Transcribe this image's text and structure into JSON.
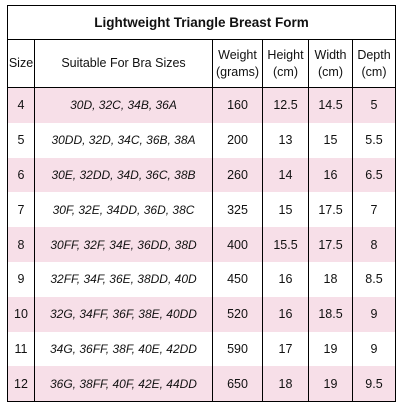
{
  "table": {
    "title": "Lightweight Triangle Breast Form",
    "headers": {
      "size": "Size",
      "bras": "Suitable For Bra Sizes",
      "weight_line1": "Weight",
      "weight_line2": "(grams)",
      "height_line1": "Height",
      "height_line2": "(cm)",
      "width_line1": "Width",
      "width_line2": "(cm)",
      "depth_line1": "Depth",
      "depth_line2": "(cm)"
    },
    "row_colors": {
      "pink": "#f7dfe8",
      "white": "#ffffff"
    },
    "rows": [
      {
        "size": "4",
        "bras": "30D, 32C, 34B, 36A",
        "weight": "160",
        "height": "12.5",
        "width": "14.5",
        "depth": "5"
      },
      {
        "size": "5",
        "bras": "30DD, 32D, 34C, 36B, 38A",
        "weight": "200",
        "height": "13",
        "width": "15",
        "depth": "5.5"
      },
      {
        "size": "6",
        "bras": "30E, 32DD, 34D, 36C, 38B",
        "weight": "260",
        "height": "14",
        "width": "16",
        "depth": "6.5"
      },
      {
        "size": "7",
        "bras": "30F, 32E, 34DD, 36D, 38C",
        "weight": "325",
        "height": "15",
        "width": "17.5",
        "depth": "7"
      },
      {
        "size": "8",
        "bras": "30FF, 32F, 34E, 36DD, 38D",
        "weight": "400",
        "height": "15.5",
        "width": "17.5",
        "depth": "8"
      },
      {
        "size": "9",
        "bras": "32FF, 34F, 36E, 38DD, 40D",
        "weight": "450",
        "height": "16",
        "width": "18",
        "depth": "8.5"
      },
      {
        "size": "10",
        "bras": "32G, 34FF, 36F, 38E, 40DD",
        "weight": "520",
        "height": "16",
        "width": "18.5",
        "depth": "9"
      },
      {
        "size": "11",
        "bras": "34G, 36FF, 38F, 40E, 42DD",
        "weight": "590",
        "height": "17",
        "width": "19",
        "depth": "9"
      },
      {
        "size": "12",
        "bras": "36G, 38FF, 40F, 42E, 44DD",
        "weight": "650",
        "height": "18",
        "width": "19",
        "depth": "9.5"
      }
    ]
  }
}
